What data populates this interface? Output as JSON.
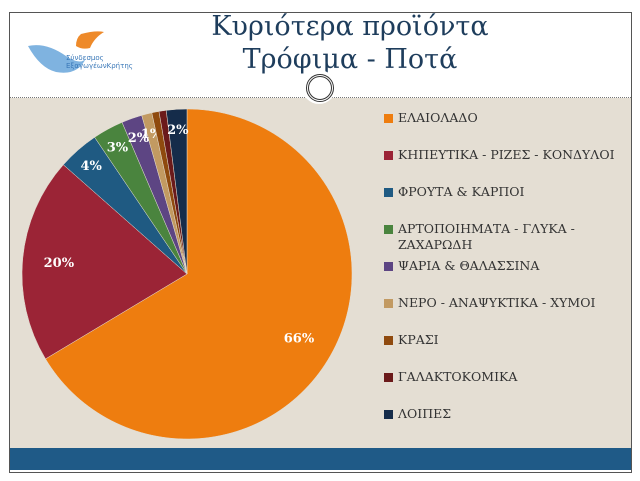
{
  "title": {
    "line1": "Κυριότερα προϊόντα",
    "line2": "Τρόφιμα - Ποτά"
  },
  "logo": {
    "line1": "Σύνδεσμος",
    "line2": "ΕξαγωγέωνΚρήτης"
  },
  "chart_data": {
    "type": "pie",
    "start": "12 o'clock, clockwise",
    "legend_position": "right",
    "categories": [
      "ΕΛΑΙΟΛΑΔΟ",
      "ΚΗΠΕΥΤΙΚΑ - ΡΙΖΕΣ - ΚΟΝΔΥΛΟΙ",
      "ΦΡΟΥΤΑ & ΚΑΡΠΟΙ",
      "ΑΡΤΟΠΟΙΗΜΑΤΑ - ΓΛΥΚΑ - ΖΑΧΑΡΩΔΗ",
      "ΨΑΡΙΑ & ΘΑΛΑΣΣΙΝΑ",
      "ΝΕΡΟ - ΑΝΑΨΥΚΤΙΚΑ - ΧΥΜΟΙ",
      "ΚΡΑΣΙ",
      "ΓΑΛΑΚΤΟΚΟΜΙΚΑ",
      "ΛΟΙΠΕΣ"
    ],
    "values": [
      66,
      20,
      4,
      3,
      2,
      1,
      0.7,
      0.7,
      2
    ],
    "data_labels": [
      "66%",
      "20%",
      "4%",
      "3%",
      "2%",
      "1%",
      "",
      "",
      "2%"
    ],
    "colors": [
      "#ee7d0f",
      "#9b2436",
      "#1f5a82",
      "#4a843e",
      "#5d4583",
      "#c29a62",
      "#8f4a0e",
      "#6b1a1a",
      "#152c4a"
    ]
  }
}
